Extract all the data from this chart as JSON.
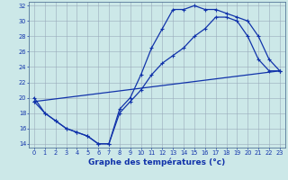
{
  "xlabel": "Graphe des températures (°c)",
  "bg_color": "#cce8e8",
  "grid_color": "#99aabb",
  "line_color": "#1133aa",
  "ylim": [
    13.5,
    32.5
  ],
  "xlim": [
    -0.5,
    23.5
  ],
  "yticks": [
    14,
    16,
    18,
    20,
    22,
    24,
    26,
    28,
    30,
    32
  ],
  "xticks": [
    0,
    1,
    2,
    3,
    4,
    5,
    6,
    7,
    8,
    9,
    10,
    11,
    12,
    13,
    14,
    15,
    16,
    17,
    18,
    19,
    20,
    21,
    22,
    23
  ],
  "line1_x": [
    0,
    1,
    2,
    3,
    4,
    5,
    6,
    7,
    8,
    9,
    10,
    11,
    12,
    13,
    14,
    15,
    16,
    17,
    18,
    19,
    20,
    21,
    22,
    23
  ],
  "line1_y": [
    20,
    18,
    17,
    16,
    15.5,
    15,
    14,
    14,
    18.5,
    20,
    23,
    26.5,
    29,
    31.5,
    31.5,
    32,
    31.5,
    31.5,
    31,
    30.5,
    30,
    28,
    25,
    23.5
  ],
  "line2_x": [
    0,
    1,
    2,
    3,
    4,
    5,
    6,
    7,
    8,
    9,
    10,
    11,
    12,
    13,
    14,
    15,
    16,
    17,
    18,
    19,
    20,
    21,
    22,
    23
  ],
  "line2_y": [
    19.5,
    18,
    17,
    16,
    15.5,
    15,
    14,
    14,
    18,
    19.5,
    21,
    23,
    24.5,
    25.5,
    26.5,
    28,
    29,
    30.5,
    30.5,
    30,
    28,
    25,
    23.5,
    23.5
  ],
  "line3_x": [
    0,
    23
  ],
  "line3_y": [
    19.5,
    23.5
  ],
  "xlabel_fontsize": 6.5,
  "tick_fontsize": 4.8,
  "ylabel_fontsize": 5.5
}
